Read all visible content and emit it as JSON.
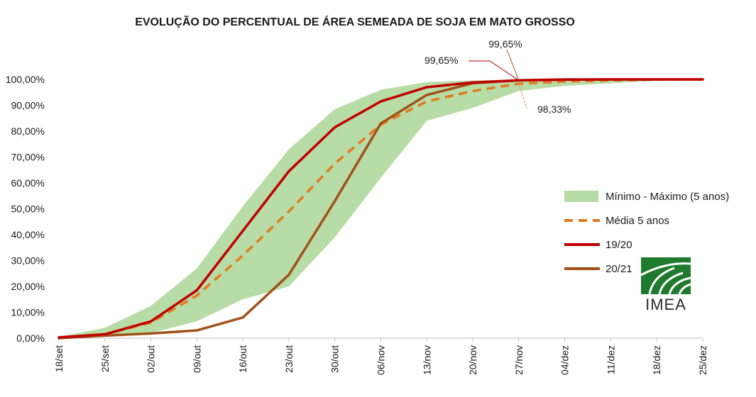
{
  "chart_data": {
    "type": "line",
    "title": "EVOLUÇÃO DO PERCENTUAL DE ÁREA SEMEADA DE SOJA EM MATO GROSSO",
    "categories": [
      "18/set",
      "25/set",
      "02/out",
      "09/out",
      "16/out",
      "23/out",
      "30/out",
      "06/nov",
      "13/nov",
      "20/nov",
      "27/nov",
      "04/dez",
      "11/dez",
      "18/dez",
      "25/dez"
    ],
    "y_ticks": [
      "0,00%",
      "10,00%",
      "20,00%",
      "30,00%",
      "40,00%",
      "50,00%",
      "60,00%",
      "70,00%",
      "80,00%",
      "90,00%",
      "100,00%"
    ],
    "ylim": [
      0,
      100
    ],
    "band": {
      "name": "Mínimo - Máximo (5 anos)",
      "color": "#b8dca6",
      "min": [
        0.0,
        0.5,
        2.0,
        6.5,
        15.0,
        20.0,
        39.0,
        62.0,
        84.0,
        89.0,
        95.5,
        97.5,
        98.5,
        99.5,
        100.0
      ],
      "max": [
        0.5,
        4.0,
        12.5,
        27.0,
        51.0,
        73.0,
        88.5,
        96.0,
        99.0,
        99.6,
        99.9,
        100.0,
        100.0,
        100.0,
        100.0
      ]
    },
    "series": [
      {
        "name": "Média 5 anos",
        "color": "#e07b1f",
        "style": "dashed",
        "values": [
          0.2,
          1.5,
          6.0,
          16.5,
          32.0,
          49.0,
          67.5,
          82.5,
          91.5,
          95.5,
          98.33,
          99.2,
          99.6,
          99.9,
          100.0
        ]
      },
      {
        "name": "19/20",
        "color": "#c00000",
        "style": "solid",
        "values": [
          0.3,
          1.5,
          6.5,
          18.5,
          41.5,
          64.5,
          81.5,
          91.5,
          97.0,
          98.8,
          99.65,
          99.9,
          100.0,
          100.0,
          100.0
        ]
      },
      {
        "name": "20/21",
        "color": "#a0521a",
        "style": "solid",
        "values": [
          0.0,
          1.0,
          1.8,
          3.0,
          8.0,
          24.5,
          53.0,
          83.0,
          94.0,
          98.5,
          99.65,
          100.0,
          100.0,
          100.0,
          100.0
        ]
      }
    ],
    "annotations": [
      {
        "label": "99,65%",
        "series": "19/20",
        "category": "27/nov"
      },
      {
        "label": "99,65%",
        "series": "20/21",
        "category": "27/nov"
      },
      {
        "label": "98,33%",
        "series": "Média 5 anos",
        "category": "27/nov"
      }
    ],
    "legend_position": "right",
    "grid": false
  },
  "logo": {
    "text": "IMEA",
    "color": "#1f7a2e"
  }
}
